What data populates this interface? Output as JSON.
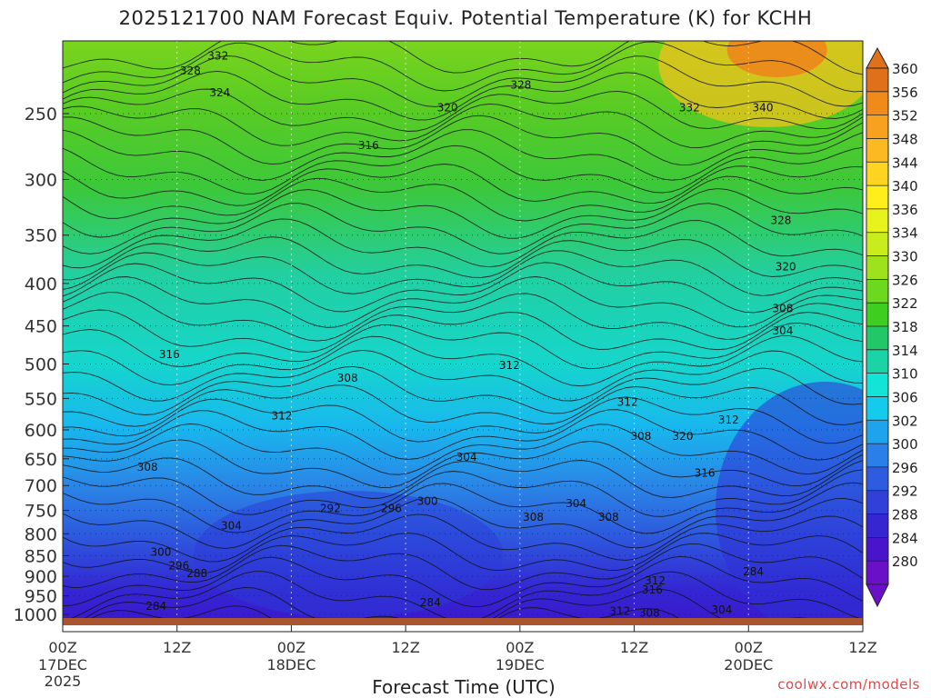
{
  "title": "2025121700 NAM Forecast Equiv. Potential Temperature (K) for KCHH",
  "credit": "coolwx.com/models",
  "colors": {
    "terrain": "#a9552f",
    "contour": "#111111",
    "text": "#333333",
    "credit": "#e04a4a"
  },
  "chart_data": {
    "type": "heatmap",
    "title": "2025121700 NAM Forecast Equiv. Potential Temperature (K) for KCHH",
    "xlabel": "Forecast Time (UTC)",
    "ylabel": "",
    "x_ticks": [
      {
        "hour": 0,
        "label": "00Z",
        "sub": [
          "17DEC",
          "2025"
        ]
      },
      {
        "hour": 12,
        "label": "12Z",
        "sub": []
      },
      {
        "hour": 24,
        "label": "00Z",
        "sub": [
          "18DEC"
        ]
      },
      {
        "hour": 36,
        "label": "12Z",
        "sub": []
      },
      {
        "hour": 48,
        "label": "00Z",
        "sub": [
          "19DEC"
        ]
      },
      {
        "hour": 60,
        "label": "12Z",
        "sub": []
      },
      {
        "hour": 72,
        "label": "00Z",
        "sub": [
          "20DEC"
        ]
      },
      {
        "hour": 84,
        "label": "12Z",
        "sub": []
      }
    ],
    "x_range_hours": [
      0,
      84
    ],
    "y_axis": "pressure (hPa), log scale",
    "y_ticks": [
      250,
      300,
      350,
      400,
      450,
      500,
      550,
      600,
      650,
      700,
      750,
      800,
      850,
      900,
      950,
      1000
    ],
    "y_range": [
      200,
      1020
    ],
    "colorbar": {
      "labels": [
        360,
        356,
        352,
        348,
        344,
        340,
        336,
        334,
        330,
        326,
        322,
        318,
        314,
        310,
        306,
        302,
        300,
        296,
        292,
        288,
        284,
        280
      ],
      "colors": [
        "#e0701a",
        "#f08a1a",
        "#f7a11e",
        "#fcb922",
        "#ffd420",
        "#ffee1a",
        "#e8f21c",
        "#c8ec1c",
        "#9ee21c",
        "#6cd81e",
        "#3ece20",
        "#22c868",
        "#1ad4a8",
        "#12e4d8",
        "#14cbee",
        "#1ea4ec",
        "#2a80e8",
        "#2e5ce0",
        "#3040d8",
        "#3626d2",
        "#4a14cc",
        "#6a10c8"
      ]
    },
    "contour_labels": [
      {
        "text": "332",
        "hour": 16.3,
        "p": 213
      },
      {
        "text": "328",
        "hour": 13.4,
        "p": 222
      },
      {
        "text": "324",
        "hour": 16.5,
        "p": 236
      },
      {
        "text": "328",
        "hour": 48.1,
        "p": 231
      },
      {
        "text": "320",
        "hour": 40.4,
        "p": 246
      },
      {
        "text": "332",
        "hour": 65.8,
        "p": 246
      },
      {
        "text": "340",
        "hour": 73.5,
        "p": 246
      },
      {
        "text": "316",
        "hour": 32.1,
        "p": 273
      },
      {
        "text": "328",
        "hour": 75.4,
        "p": 336
      },
      {
        "text": "320",
        "hour": 75.9,
        "p": 382
      },
      {
        "text": "308",
        "hour": 75.6,
        "p": 429
      },
      {
        "text": "304",
        "hour": 75.6,
        "p": 456
      },
      {
        "text": "316",
        "hour": 11.2,
        "p": 487
      },
      {
        "text": "312",
        "hour": 46.9,
        "p": 502
      },
      {
        "text": "308",
        "hour": 29.9,
        "p": 520
      },
      {
        "text": "312",
        "hour": 59.3,
        "p": 556
      },
      {
        "text": "312",
        "hour": 23.0,
        "p": 577
      },
      {
        "text": "312",
        "hour": 69.9,
        "p": 584
      },
      {
        "text": "308",
        "hour": 60.7,
        "p": 611
      },
      {
        "text": "320",
        "hour": 65.1,
        "p": 611
      },
      {
        "text": "304",
        "hour": 42.4,
        "p": 647
      },
      {
        "text": "308",
        "hour": 8.9,
        "p": 665
      },
      {
        "text": "316",
        "hour": 67.4,
        "p": 676
      },
      {
        "text": "300",
        "hour": 38.3,
        "p": 731
      },
      {
        "text": "292",
        "hour": 28.1,
        "p": 746
      },
      {
        "text": "296",
        "hour": 34.5,
        "p": 746
      },
      {
        "text": "304",
        "hour": 53.9,
        "p": 736
      },
      {
        "text": "308",
        "hour": 49.4,
        "p": 764
      },
      {
        "text": "308",
        "hour": 57.3,
        "p": 764
      },
      {
        "text": "304",
        "hour": 17.7,
        "p": 782
      },
      {
        "text": "300",
        "hour": 10.3,
        "p": 842
      },
      {
        "text": "296",
        "hour": 12.2,
        "p": 874
      },
      {
        "text": "288",
        "hour": 14.1,
        "p": 893
      },
      {
        "text": "284",
        "hour": 72.5,
        "p": 888
      },
      {
        "text": "312",
        "hour": 62.2,
        "p": 911
      },
      {
        "text": "316",
        "hour": 61.9,
        "p": 934
      },
      {
        "text": "284",
        "hour": 38.6,
        "p": 968
      },
      {
        "text": "284",
        "hour": 9.8,
        "p": 978
      },
      {
        "text": "312",
        "hour": 58.5,
        "p": 991
      },
      {
        "text": "308",
        "hour": 61.6,
        "p": 996
      },
      {
        "text": "304",
        "hour": 69.2,
        "p": 988
      }
    ],
    "grid": true
  }
}
